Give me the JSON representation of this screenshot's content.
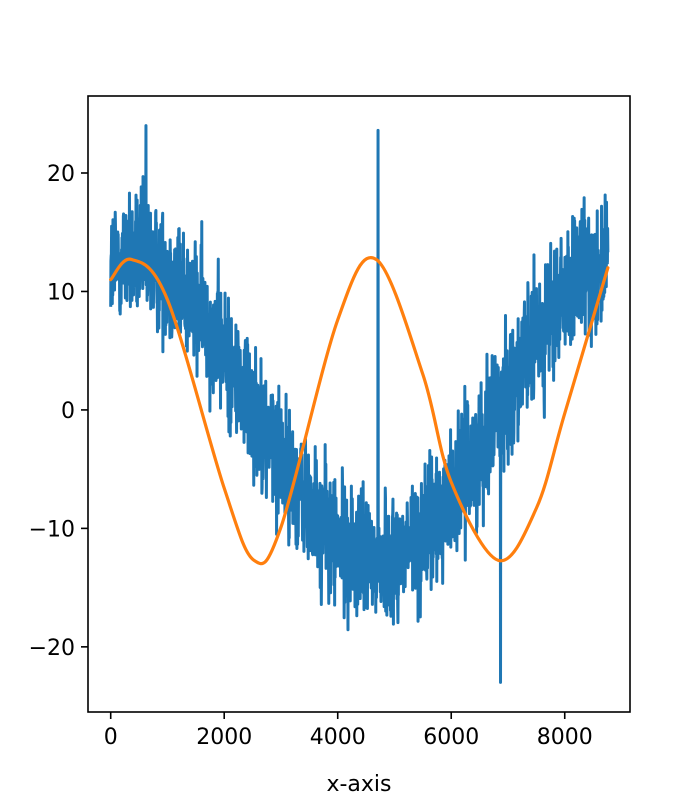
{
  "chart_data": {
    "type": "line",
    "xlabel": "x-axis",
    "ylabel": "",
    "xlim": [
      -400,
      9150
    ],
    "ylim": [
      -25.5,
      26.5
    ],
    "x_ticks": [
      0,
      2000,
      4000,
      6000,
      8000
    ],
    "x_tick_labels": [
      "0",
      "2000",
      "4000",
      "6000",
      "8000"
    ],
    "y_ticks": [
      -20,
      -10,
      0,
      10,
      20
    ],
    "y_tick_labels": [
      "−20",
      "−10",
      "0",
      "10",
      "20"
    ],
    "grid": false,
    "legend": "none",
    "series": [
      {
        "style": "noisy",
        "color": "#1f77b4",
        "x_start": 0,
        "x_end": 8760,
        "amplitude": 12.7,
        "period": 8620,
        "phase_peak_x": 370,
        "noise_band": [
          -8,
          8
        ],
        "extremes": [
          {
            "x": 620,
            "y": 24
          },
          {
            "x": 4710,
            "y": 23.6
          },
          {
            "x": 6870,
            "y": -23
          }
        ]
      },
      {
        "style": "smooth",
        "color": "#ff7f0e",
        "x": [
          0,
          370,
          1000,
          2000,
          2525,
          3000,
          4000,
          4680,
          5500,
          6000,
          6830,
          7500,
          8000,
          8760
        ],
        "y": [
          11.0,
          12.7,
          9.3,
          -6.6,
          -12.7,
          -9.9,
          7.6,
          12.7,
          3.0,
          -6.1,
          -12.7,
          -8.3,
          -0.3,
          12.0
        ]
      }
    ]
  }
}
